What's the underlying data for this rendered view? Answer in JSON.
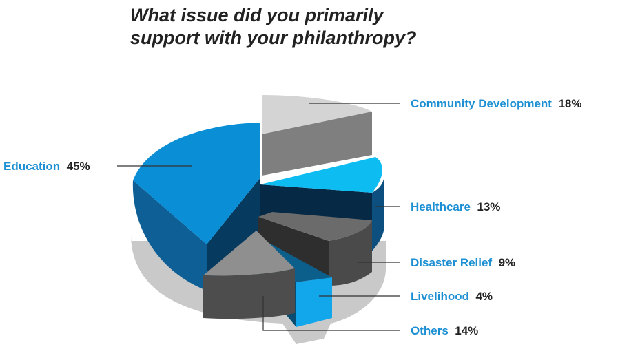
{
  "title_lines": [
    "What issue did you primarily",
    "support with your philanthropy?"
  ],
  "chart_data": {
    "type": "pie",
    "title": "What issue did you primarily support with your philanthropy?",
    "style": "3d-exploded",
    "slices": [
      {
        "label": "Education",
        "value": 45,
        "value_label": "45%",
        "color": "#0a8fd6",
        "side_color": "#0d5f96",
        "inner_color": "#063a5e"
      },
      {
        "label": "Community Development",
        "value": 18,
        "value_label": "18%",
        "color": "#d4d4d4",
        "side_color": "#7f7f7f",
        "inner_color": "#5f5f5f"
      },
      {
        "label": "Healthcare",
        "value": 13,
        "value_label": "13%",
        "color": "#0dbdf2",
        "side_color": "#0d4f7e",
        "inner_color": "#062a45"
      },
      {
        "label": "Disaster Relief",
        "value": 9,
        "value_label": "9%",
        "color": "#6b6b6b",
        "side_color": "#4a4a4a",
        "inner_color": "#2e2e2e"
      },
      {
        "label": "Livelihood",
        "value": 4,
        "value_label": "4%",
        "color": "#0c5f8a",
        "side_color": "#12a6ea",
        "inner_color": "#0a4d70"
      },
      {
        "label": "Others",
        "value": 14,
        "value_label": "14%",
        "color": "#8f8f8f",
        "side_color": "#4d4d4d",
        "inner_color": "#3a3a3a"
      }
    ],
    "label_color": "#1c8fd3",
    "value_color": "#222222"
  }
}
